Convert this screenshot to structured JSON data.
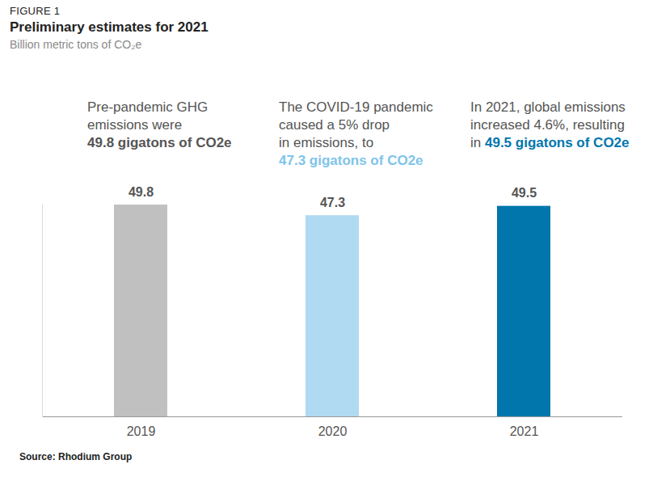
{
  "chart_data": {
    "type": "bar",
    "figure_label": "FIGURE 1",
    "title": "Preliminary estimates for 2021",
    "subtitle": "Billion metric tons of CO₂e",
    "source": "Source: Rhodium Group",
    "categories": [
      "2019",
      "2020",
      "2021"
    ],
    "values": [
      49.8,
      47.3,
      49.5
    ],
    "colors": [
      "#c0c0c0",
      "#b0daf1",
      "#0076ad"
    ],
    "ylim": [
      0,
      50
    ],
    "data_labels": true,
    "tick_labels": "x",
    "grid": false,
    "annotations": [
      {
        "category": "2019",
        "color": "#555555",
        "lines": [
          {
            "text": "Pre-pandemic GHG"
          },
          {
            "text": "emissions were"
          },
          {
            "highlight": "49.8 gigatons of CO2e"
          }
        ]
      },
      {
        "category": "2020",
        "color": "#7fc4ea",
        "lines": [
          {
            "text": "The COVID-19 pandemic"
          },
          {
            "text": "caused a 5% drop"
          },
          {
            "text": "in emissions, to"
          },
          {
            "highlight": "47.3 gigatons of CO2e"
          }
        ]
      },
      {
        "category": "2021",
        "color": "#0076ad",
        "lines": [
          {
            "text": "In 2021, global emissions"
          },
          {
            "text": "increased 4.6%, resulting"
          },
          {
            "text": "in",
            "highlight": "49.5 gigatons of CO2e"
          }
        ]
      }
    ]
  }
}
